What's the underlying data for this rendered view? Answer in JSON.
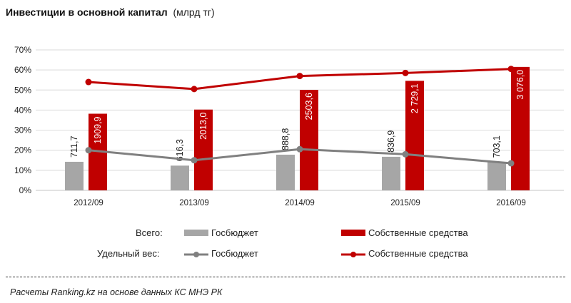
{
  "chart_data": {
    "type": "bar",
    "title": "Инвестиции  в основной  капитал",
    "title_unit": "(млрд тг)",
    "categories": [
      "2012/09",
      "2013/09",
      "2014/09",
      "2015/09",
      "2016/09"
    ],
    "ylim": [
      0,
      70
    ],
    "yticks": [
      "0%",
      "10%",
      "20%",
      "30%",
      "40%",
      "50%",
      "60%",
      "70%"
    ],
    "ytick_values": [
      0,
      10,
      20,
      30,
      40,
      50,
      60,
      70
    ],
    "bar_axis_max": 3500,
    "grid": true,
    "bar_series": [
      {
        "name": "Госбюджет",
        "color": "#a6a6a6",
        "values": [
          711.7,
          616.3,
          888.8,
          836.9,
          703.1
        ],
        "labels": [
          "711,7",
          "616,3",
          "888,8",
          "836,9",
          "703,1"
        ]
      },
      {
        "name": "Собственные средства",
        "color": "#c00000",
        "values": [
          1909.9,
          2013.0,
          2503.6,
          2729.1,
          3076.0
        ],
        "labels": [
          "1909,9",
          "2013,0",
          "2503,6",
          "2 729,1",
          "3 076,0"
        ]
      }
    ],
    "line_series": [
      {
        "name": "Госбюджет",
        "color": "#808080",
        "values": [
          20,
          15,
          20.5,
          18,
          13.5
        ]
      },
      {
        "name": "Собственные средства",
        "color": "#c00000",
        "values": [
          54,
          50.5,
          57,
          58.5,
          60.5
        ]
      }
    ],
    "legend": {
      "row1_label": "Всего:",
      "row2_label": "Удельный вес:",
      "position": "bottom"
    }
  },
  "footer": "Расчеты Ranking.kz на основе данных  КС МНЭ РК"
}
